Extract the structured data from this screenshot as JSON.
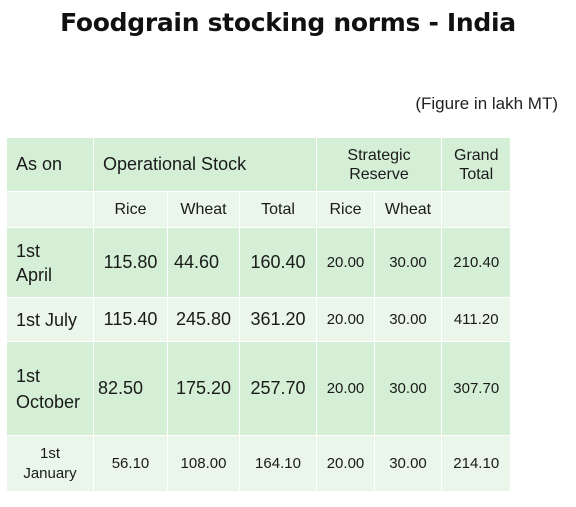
{
  "title": "Foodgrain stocking norms - India",
  "unit": "(Figure in lakh MT)",
  "header": {
    "as_on": "As on",
    "operational": "Operational Stock",
    "strategic": "Strategic Reserve",
    "grand_total": "Grand Total"
  },
  "subheader": {
    "op_rice": "Rice",
    "op_wheat": "Wheat",
    "op_total": "Total",
    "st_rice": "Rice",
    "st_wheat": "Wheat"
  },
  "rows": [
    {
      "label": "1st April",
      "op_rice": "115.80",
      "op_wheat": "44.60",
      "op_total": "160.40",
      "st_rice": "20.00",
      "st_wheat": "30.00",
      "grand": "210.40"
    },
    {
      "label": "1st July",
      "op_rice": "115.40",
      "op_wheat": "245.80",
      "op_total": "361.20",
      "st_rice": "20.00",
      "st_wheat": "30.00",
      "grand": "411.20"
    },
    {
      "label": "1st October",
      "op_rice": "82.50",
      "op_wheat": "175.20",
      "op_total": "257.70",
      "st_rice": "20.00",
      "st_wheat": "30.00",
      "grand": "307.70"
    },
    {
      "label": "1st January",
      "op_rice": "56.10",
      "op_wheat": "108.00",
      "op_total": "164.10",
      "st_rice": "20.00",
      "st_wheat": "30.00",
      "grand": "214.10"
    }
  ]
}
